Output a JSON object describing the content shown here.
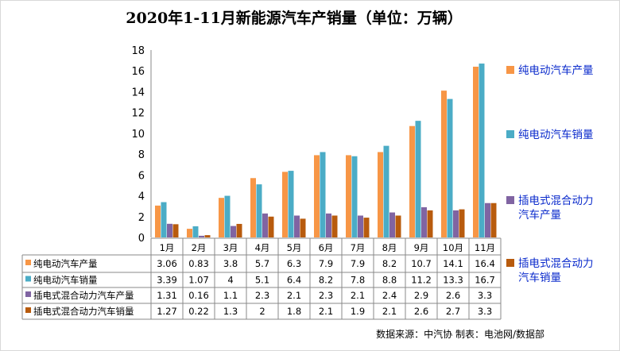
{
  "chart_data": {
    "type": "bar",
    "title": "2020年1-11月新能源汽车产销量（单位：万辆）",
    "categories": [
      "1月",
      "2月",
      "3月",
      "4月",
      "5月",
      "6月",
      "7月",
      "8月",
      "9月",
      "10月",
      "11月"
    ],
    "series": [
      {
        "name": "纯电动汽车产量",
        "legend": [
          "纯电动汽车产量"
        ],
        "color": "#F79646",
        "values": [
          3.06,
          0.83,
          3.8,
          5.7,
          6.3,
          7.9,
          7.9,
          8.2,
          10.7,
          14.1,
          16.4
        ]
      },
      {
        "name": "纯电动汽车销量",
        "legend": [
          "纯电动汽车销量"
        ],
        "color": "#4BACC6",
        "values": [
          3.39,
          1.07,
          4,
          5.1,
          6.4,
          8.2,
          7.8,
          8.8,
          11.2,
          13.3,
          16.7
        ]
      },
      {
        "name": "插电式混合动力汽车产量",
        "legend": [
          "插电式混合动力",
          "汽车产量"
        ],
        "color": "#8064A2",
        "values": [
          1.31,
          0.16,
          1.1,
          2.3,
          2.1,
          2.3,
          2.1,
          2.4,
          2.9,
          2.6,
          3.3
        ]
      },
      {
        "name": "插电式混合动力汽车销量",
        "legend": [
          "插电式混合动力",
          "汽车销量"
        ],
        "color": "#B85B0D",
        "values": [
          1.27,
          0.22,
          1.3,
          2,
          1.8,
          2.1,
          1.9,
          2.1,
          2.6,
          2.7,
          3.3
        ]
      }
    ],
    "ylim": [
      0,
      18
    ],
    "yticks": [
      0,
      2,
      4,
      6,
      8,
      10,
      12,
      14,
      16,
      18
    ],
    "xlabel": "",
    "ylabel": "",
    "grid": false,
    "legend_position": "right",
    "data_table": true
  },
  "source_note": "数据来源：中汽协  制表：电池网/数据部"
}
